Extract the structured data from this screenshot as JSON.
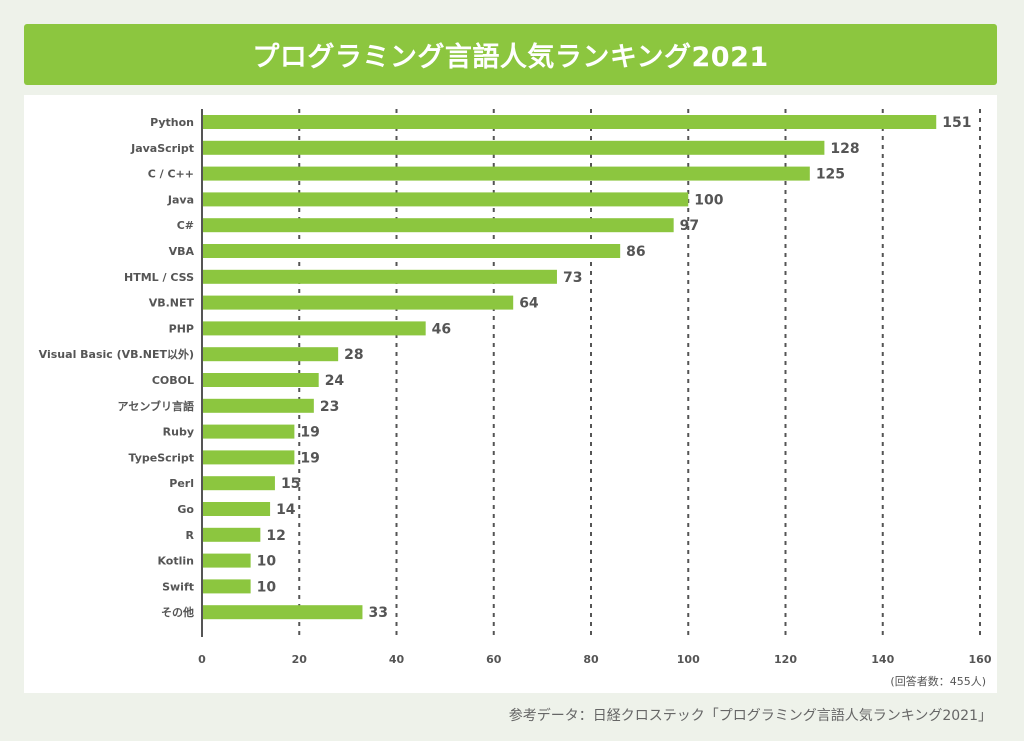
{
  "title": "プログラミング言語人気ランキング2021",
  "respondents_note": "(回答者数：455人)",
  "source": "参考データ：日経クロステック「プログラミング言語人気ランキング2021」",
  "colors": {
    "bar": "#8cc63f",
    "title_bg": "#8cc63f",
    "page_bg": "#eef2ea",
    "text": "#555555",
    "grid": "#555555"
  },
  "chart_data": {
    "type": "bar",
    "orientation": "horizontal",
    "categories": [
      "Python",
      "JavaScript",
      "C / C++",
      "Java",
      "C#",
      "VBA",
      "HTML / CSS",
      "VB.NET",
      "PHP",
      "Visual Basic (VB.NET以外)",
      "COBOL",
      "アセンブリ言語",
      "Ruby",
      "TypeScript",
      "Perl",
      "Go",
      "R",
      "Kotlin",
      "Swift",
      "その他"
    ],
    "values": [
      151,
      128,
      125,
      100,
      97,
      86,
      73,
      64,
      46,
      28,
      24,
      23,
      19,
      19,
      15,
      14,
      12,
      10,
      10,
      33
    ],
    "xlim": [
      0,
      160
    ],
    "xticks": [
      0,
      20,
      40,
      60,
      80,
      100,
      120,
      140,
      160
    ],
    "grid": "vertical dashed",
    "legend": "none"
  }
}
